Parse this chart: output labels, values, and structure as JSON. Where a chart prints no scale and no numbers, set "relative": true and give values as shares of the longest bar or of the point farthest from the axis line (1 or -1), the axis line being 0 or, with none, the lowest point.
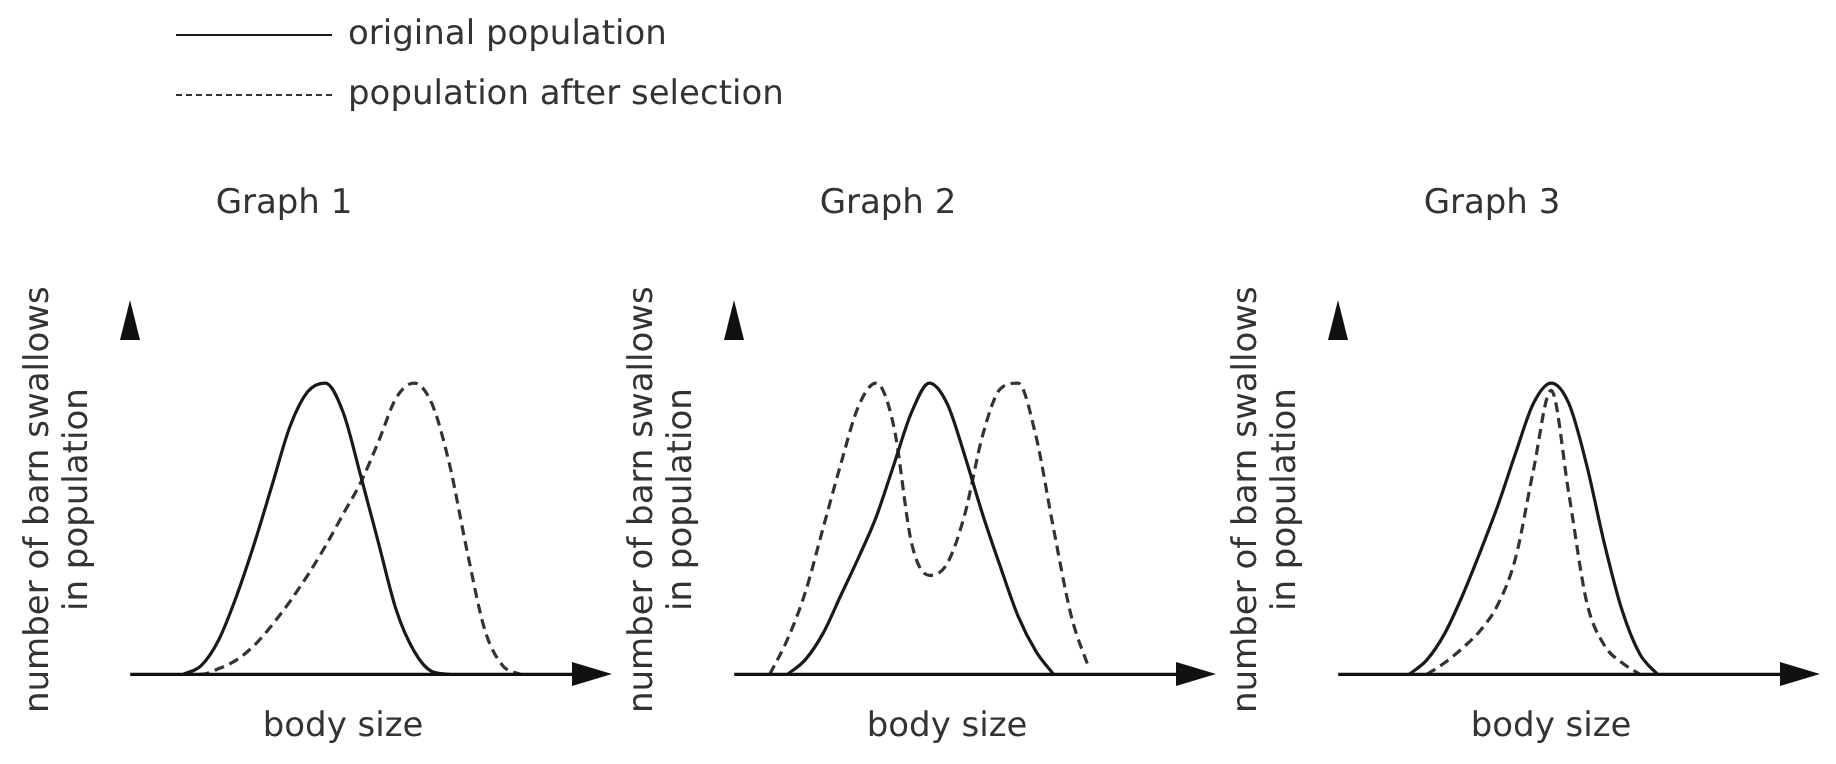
{
  "chart_data": [
    {
      "type": "line",
      "title": "Graph 1",
      "xlabel": "body size",
      "ylabel": "number of barn swallows in population",
      "relative": true,
      "legend": "top",
      "categories": [
        null,
        null,
        null,
        null,
        null,
        null,
        null,
        null,
        null,
        null,
        null,
        null,
        null,
        null,
        null,
        null,
        null,
        null,
        null,
        null,
        null,
        null,
        null,
        null,
        null
      ],
      "series": [
        {
          "name": "original population",
          "color": "#1a1a1a",
          "line_style": "solid",
          "values": [
            null,
            null,
            null,
            0,
            0.03,
            0.12,
            0.27,
            0.45,
            0.65,
            0.85,
            0.97,
            1,
            0.9,
            0.68,
            0.45,
            0.22,
            0.08,
            0.01,
            0,
            null,
            null,
            null,
            null,
            null,
            null
          ]
        },
        {
          "name": "population after selection",
          "color": "#333333",
          "line_style": "dashed",
          "values": [
            null,
            null,
            null,
            0,
            0,
            0.02,
            0.05,
            0.1,
            0.17,
            0.25,
            0.34,
            0.44,
            0.55,
            0.66,
            0.8,
            0.95,
            1,
            0.93,
            0.72,
            0.42,
            0.15,
            0.03,
            0,
            null,
            null
          ]
        }
      ]
    },
    {
      "type": "line",
      "title": "Graph 2",
      "xlabel": "body size",
      "ylabel": "number of barn swallows in population",
      "relative": true,
      "categories": [
        null,
        null,
        null,
        null,
        null,
        null,
        null,
        null,
        null,
        null,
        null,
        null,
        null,
        null,
        null,
        null,
        null,
        null,
        null,
        null,
        null,
        null,
        null,
        null,
        null
      ],
      "series": [
        {
          "color": "#1a1a1a",
          "line_style": "solid",
          "values": [
            null,
            null,
            null,
            0,
            0.05,
            0.14,
            0.27,
            0.4,
            0.54,
            0.72,
            0.9,
            1,
            0.93,
            0.75,
            0.55,
            0.37,
            0.2,
            0.08,
            0,
            null,
            null,
            null,
            null,
            null,
            null
          ]
        },
        {
          "color": "#333333",
          "line_style": "dashed",
          "values": [
            null,
            null,
            0,
            0.12,
            0.28,
            0.5,
            0.72,
            0.92,
            1,
            0.85,
            0.45,
            0.34,
            0.38,
            0.55,
            0.82,
            0.98,
            1,
            0.82,
            0.5,
            0.2,
            0.02,
            null,
            null,
            null,
            null
          ]
        }
      ]
    },
    {
      "type": "line",
      "title": "Graph 3",
      "xlabel": "body size",
      "ylabel": "number of barn swallows in population",
      "relative": true,
      "categories": [
        null,
        null,
        null,
        null,
        null,
        null,
        null,
        null,
        null,
        null,
        null,
        null,
        null,
        null,
        null,
        null,
        null,
        null,
        null,
        null,
        null,
        null,
        null,
        null,
        null
      ],
      "series": [
        {
          "color": "#1a1a1a",
          "line_style": "solid",
          "values": [
            null,
            null,
            null,
            null,
            0,
            0.05,
            0.14,
            0.27,
            0.42,
            0.58,
            0.76,
            0.93,
            1,
            0.93,
            0.72,
            0.45,
            0.22,
            0.07,
            0,
            null,
            null,
            null,
            null,
            null,
            null
          ]
        },
        {
          "color": "#333333",
          "line_style": "dashed",
          "values": [
            null,
            null,
            null,
            null,
            null,
            0,
            0.04,
            0.09,
            0.15,
            0.24,
            0.4,
            0.7,
            0.975,
            0.62,
            0.25,
            0.1,
            0.04,
            0,
            null,
            null,
            null,
            null,
            null,
            null,
            null
          ]
        }
      ]
    }
  ]
}
